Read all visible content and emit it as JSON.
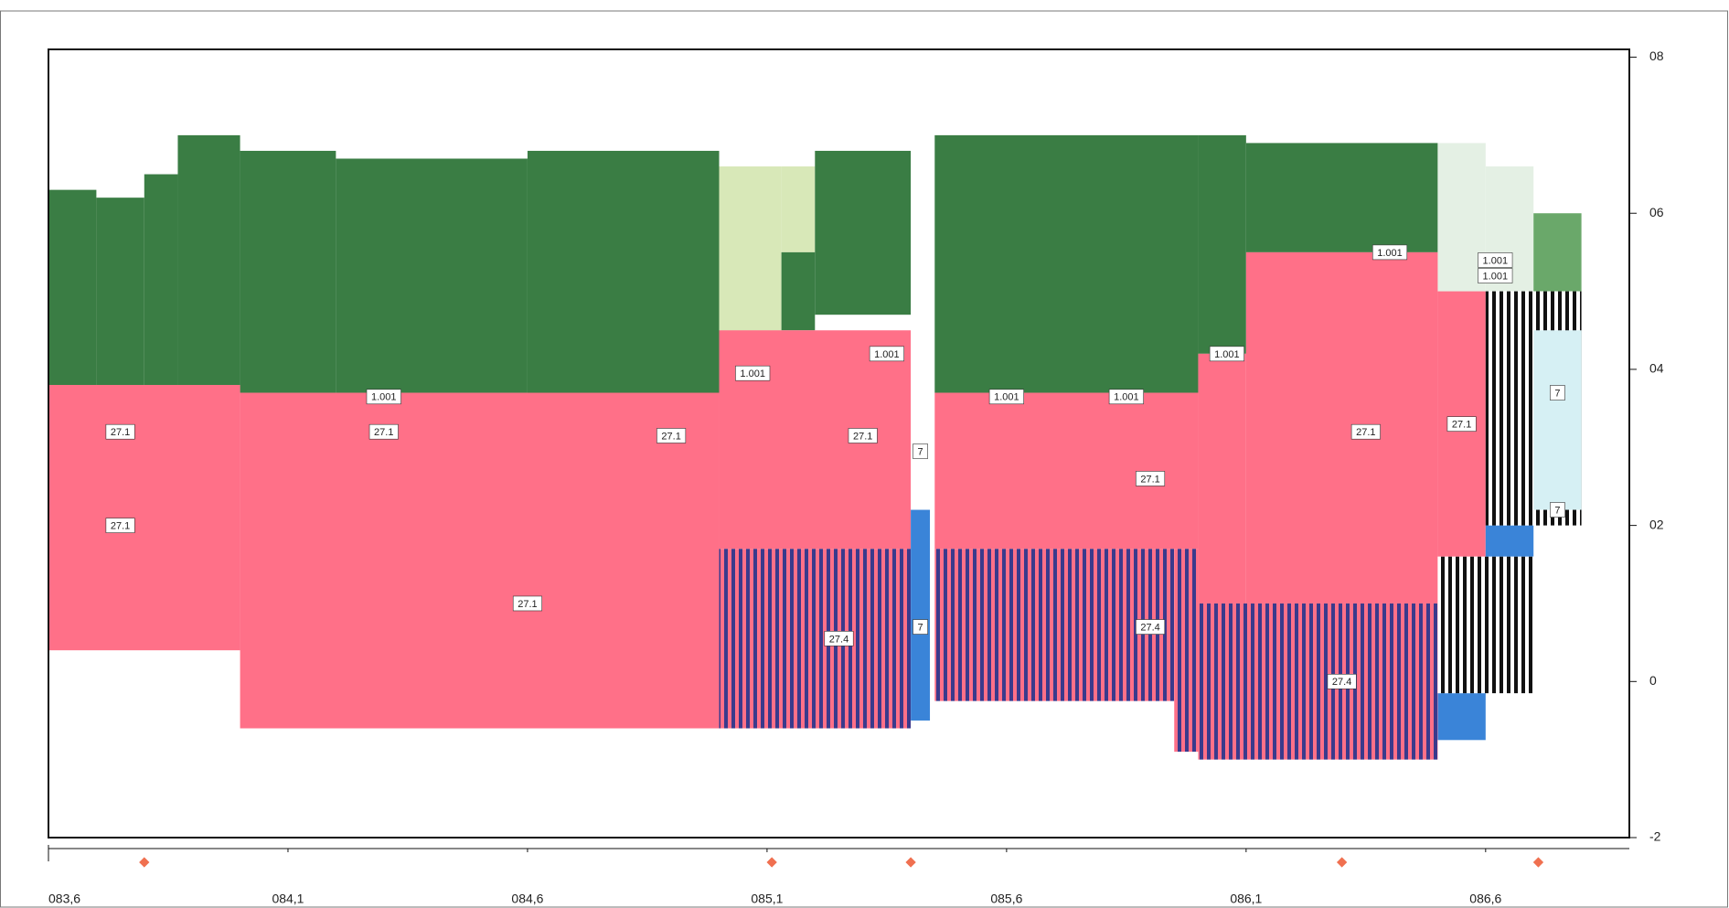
{
  "chart_data": {
    "type": "section",
    "xlim": [
      83.6,
      86.9
    ],
    "ylim": [
      -2,
      8.1
    ],
    "xticks": [
      {
        "value": 83.6,
        "label": "083,6"
      },
      {
        "value": 84.1,
        "label": "084,1"
      },
      {
        "value": 84.6,
        "label": "084,6"
      },
      {
        "value": 85.1,
        "label": "085,1"
      },
      {
        "value": 85.6,
        "label": "085,6"
      },
      {
        "value": 86.1,
        "label": "086,1"
      },
      {
        "value": 86.6,
        "label": "086,6"
      }
    ],
    "yticks": [
      {
        "value": 8,
        "label": "08"
      },
      {
        "value": 6,
        "label": "06"
      },
      {
        "value": 4,
        "label": "04"
      },
      {
        "value": 2,
        "label": "02"
      },
      0,
      -2
    ],
    "blocks": [
      {
        "x": [
          83.6,
          83.7
        ],
        "values": [
          6.3,
          3.8
        ],
        "color": "#3a7d44"
      },
      {
        "x": [
          83.7,
          83.8
        ],
        "values": [
          6.2,
          3.8
        ],
        "color": "#3a7d44"
      },
      {
        "x": [
          83.8,
          83.87
        ],
        "values": [
          6.5,
          3.8
        ],
        "color": "#3a7d44"
      },
      {
        "x": [
          83.87,
          84.0
        ],
        "values": [
          7.0,
          3.8
        ],
        "color": "#3a7d44"
      },
      {
        "x": [
          84.0,
          84.2
        ],
        "values": [
          6.8,
          3.7
        ],
        "color": "#3a7d44"
      },
      {
        "x": [
          84.2,
          84.6
        ],
        "values": [
          6.7,
          3.7
        ],
        "color": "#3a7d44"
      },
      {
        "x": [
          84.6,
          85.0
        ],
        "values": [
          6.8,
          3.6
        ],
        "color": "#3a7d44"
      },
      {
        "x": [
          85.0,
          85.13
        ],
        "values": [
          6.6,
          4.2
        ],
        "color": "#d8e8b8"
      },
      {
        "x": [
          85.13,
          85.2
        ],
        "values": [
          6.6,
          5.5
        ],
        "color": "#d8e8b8"
      },
      {
        "x": [
          85.13,
          85.2
        ],
        "values": [
          5.5,
          4.5
        ],
        "color": "#3a7d44"
      },
      {
        "x": [
          85.2,
          85.4
        ],
        "values": [
          6.8,
          4.7
        ],
        "color": "#3a7d44"
      },
      {
        "x": [
          85.45,
          86.0
        ],
        "values": [
          7.0,
          3.7
        ],
        "color": "#3a7d44"
      },
      {
        "x": [
          86.0,
          86.1
        ],
        "values": [
          7.0,
          4.2
        ],
        "color": "#3a7d44"
      },
      {
        "x": [
          86.1,
          86.5
        ],
        "values": [
          6.9,
          5.5
        ],
        "color": "#3a7d44"
      },
      {
        "x": [
          86.5,
          86.6
        ],
        "values": [
          6.9,
          5.0
        ],
        "color": "#e4f0e4"
      },
      {
        "x": [
          86.6,
          86.7
        ],
        "values": [
          6.6,
          5.0
        ],
        "color": "#e4f0e4"
      },
      {
        "x": [
          86.7,
          86.8
        ],
        "values": [
          6.0,
          5.0
        ],
        "color": "#6aa86a"
      },
      {
        "x": [
          83.6,
          84.0
        ],
        "values": [
          3.8,
          0.4
        ],
        "color": "#ff7088"
      },
      {
        "x": [
          84.0,
          85.0
        ],
        "values": [
          3.7,
          -0.6
        ],
        "color": "#ff7088"
      },
      {
        "x": [
          85.0,
          85.4
        ],
        "values": [
          4.5,
          1.7
        ],
        "color": "#ff7088"
      },
      {
        "x": [
          85.45,
          86.0
        ],
        "values": [
          3.7,
          1.7
        ],
        "color": "#ff7088"
      },
      {
        "x": [
          86.0,
          86.1
        ],
        "values": [
          4.2,
          1.0
        ],
        "color": "#ff7088"
      },
      {
        "x": [
          86.1,
          86.5
        ],
        "values": [
          5.5,
          1.0
        ],
        "color": "#ff7088"
      },
      {
        "x": [
          86.5,
          86.6
        ],
        "values": [
          5.0,
          1.6
        ],
        "color": "#ff7088"
      },
      {
        "x": [
          85.0,
          85.4
        ],
        "values": [
          1.7,
          -0.6
        ],
        "color": "#ff7088",
        "hatch": "#3a3a8c"
      },
      {
        "x": [
          85.45,
          85.95
        ],
        "values": [
          1.7,
          -0.25
        ],
        "color": "#ff7088",
        "hatch": "#3a3a8c"
      },
      {
        "x": [
          85.95,
          86.0
        ],
        "values": [
          1.7,
          -0.9
        ],
        "color": "#ff7088",
        "hatch": "#3a3a8c"
      },
      {
        "x": [
          86.0,
          86.5
        ],
        "values": [
          1.0,
          -1.0
        ],
        "color": "#ff7088",
        "hatch": "#3a3a8c"
      },
      {
        "x": [
          85.4,
          85.44
        ],
        "values": [
          2.2,
          -0.5
        ],
        "color": "#3a84d8"
      },
      {
        "x": [
          86.5,
          86.6
        ],
        "values": [
          -0.15,
          -0.75
        ],
        "color": "#3a84d8"
      },
      {
        "x": [
          86.6,
          86.7
        ],
        "values": [
          2.0,
          1.6
        ],
        "color": "#3a84d8"
      },
      {
        "x": [
          86.6,
          86.8
        ],
        "values": [
          5.0,
          2.0
        ],
        "color": "#ffffff",
        "hatch": "#111111"
      },
      {
        "x": [
          86.5,
          86.7
        ],
        "values": [
          1.6,
          -0.15
        ],
        "color": "#ffffff",
        "hatch": "#111111"
      },
      {
        "x": [
          86.7,
          86.8
        ],
        "values": [
          4.5,
          2.2
        ],
        "color": "#d6f0f4"
      }
    ],
    "annotations": [
      {
        "text": "27.1",
        "x": 83.75,
        "y": 3.2
      },
      {
        "text": "27.1",
        "x": 84.3,
        "y": 3.2
      },
      {
        "text": "27.1",
        "x": 84.9,
        "y": 3.15
      },
      {
        "text": "27.1",
        "x": 83.75,
        "y": 2.0
      },
      {
        "text": "27.1",
        "x": 84.6,
        "y": 1.0
      },
      {
        "text": "27.1",
        "x": 85.3,
        "y": 3.15
      },
      {
        "text": "27.1",
        "x": 85.9,
        "y": 2.6
      },
      {
        "text": "27.1",
        "x": 86.35,
        "y": 3.2
      },
      {
        "text": "27.1",
        "x": 86.55,
        "y": 3.3
      },
      {
        "text": "27.4",
        "x": 85.25,
        "y": 0.55
      },
      {
        "text": "27.4",
        "x": 85.9,
        "y": 0.7
      },
      {
        "text": "27.4",
        "x": 86.3,
        "y": 0
      },
      {
        "text": "1.001",
        "x": 84.3,
        "y": 3.65
      },
      {
        "text": "1.001",
        "x": 85.07,
        "y": 3.95
      },
      {
        "text": "1.001",
        "x": 85.35,
        "y": 4.2
      },
      {
        "text": "1.001",
        "x": 85.6,
        "y": 3.65
      },
      {
        "text": "1.001",
        "x": 85.85,
        "y": 3.65
      },
      {
        "text": "1.001",
        "x": 86.06,
        "y": 4.2
      },
      {
        "text": "1.001",
        "x": 86.4,
        "y": 5.5
      },
      {
        "text": "1.001",
        "x": 86.62,
        "y": 5.4
      },
      {
        "text": "1.001",
        "x": 86.62,
        "y": 5.2
      },
      {
        "text": "7",
        "x": 85.42,
        "y": 2.95
      },
      {
        "text": "7",
        "x": 85.42,
        "y": 0.7
      },
      {
        "text": "7",
        "x": 86.75,
        "y": 3.7
      },
      {
        "text": "7",
        "x": 86.75,
        "y": 2.2
      }
    ],
    "markers": [
      83.8,
      85.11,
      85.4,
      86.3,
      86.71
    ],
    "marker_color": "#f07050"
  }
}
